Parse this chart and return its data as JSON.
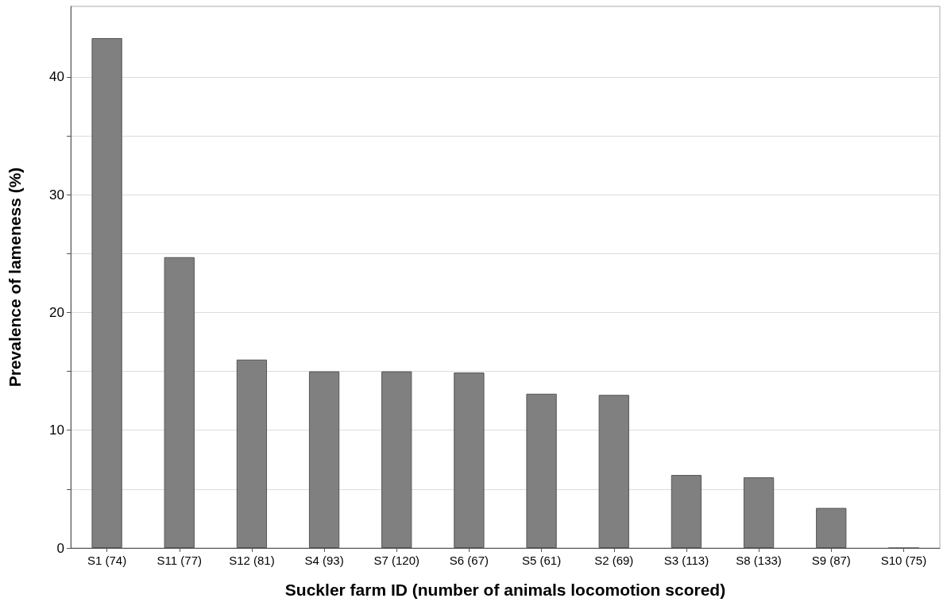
{
  "chart_data": {
    "type": "bar",
    "xlabel": "Suckler farm ID (number of animals locomotion scored)",
    "ylabel": "Prevalence of lameness (%)",
    "categories": [
      "S1 (74)",
      "S11 (77)",
      "S12 (81)",
      "S4 (93)",
      "S7 (120)",
      "S6 (67)",
      "S5 (61)",
      "S2 (69)",
      "S3 (113)",
      "S8 (133)",
      "S9 (87)",
      "S10 (75)"
    ],
    "values": [
      43.3,
      24.7,
      16.0,
      15.0,
      15.0,
      14.9,
      13.1,
      13.0,
      6.2,
      6.0,
      3.4,
      0
    ],
    "color": "#808080",
    "ylim": [
      0,
      46
    ],
    "yticks": [
      0,
      {
        "value": 5,
        "label": null
      },
      10,
      {
        "value": 15,
        "label": null
      },
      20,
      {
        "value": 25,
        "label": null
      },
      30,
      {
        "value": 35,
        "label": null
      },
      40
    ],
    "grid": "y"
  }
}
